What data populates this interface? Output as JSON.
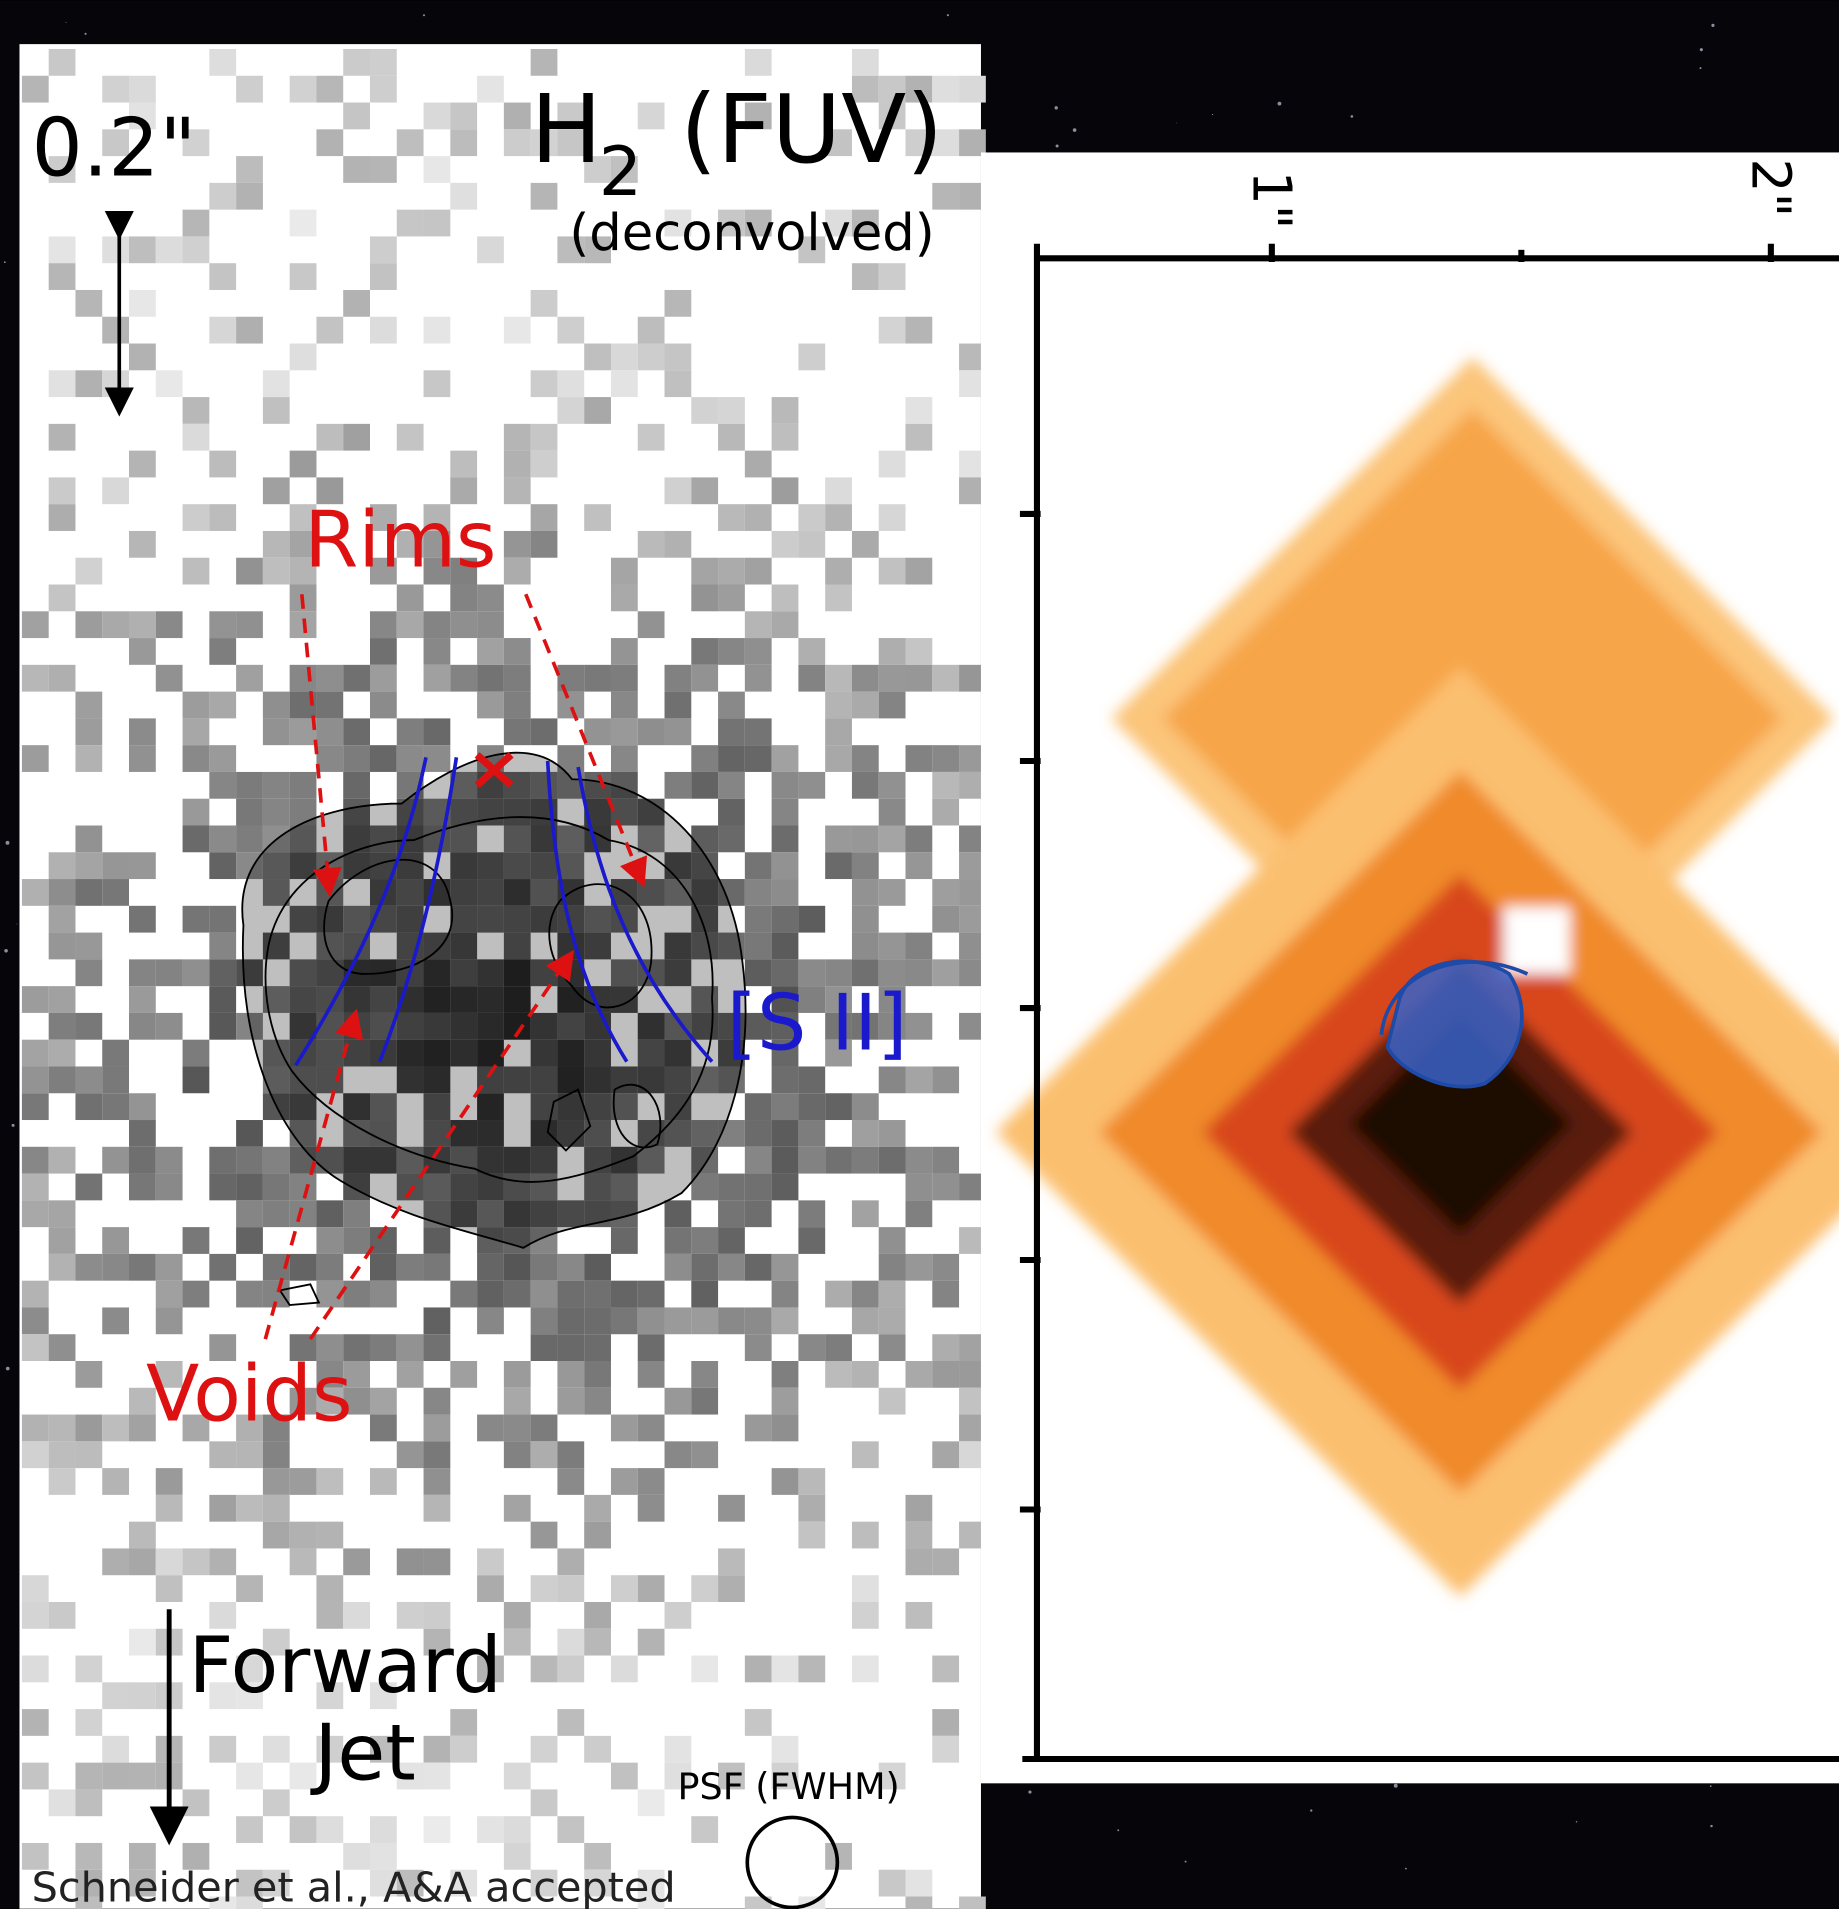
{
  "left_panel": {
    "scale_label": "0.2\"",
    "title": {
      "main": "H",
      "subscript": "2",
      "suffix": "(FUV)"
    },
    "subtitle": "(deconvolved)",
    "labels": {
      "rims": "Rims",
      "sii": "[S II]",
      "voids": "Voids"
    },
    "direction": {
      "line1": "Forward",
      "line2": "Jet"
    },
    "psf_label": "PSF (FWHM)",
    "credit": "Schneider et al., A&A accepted"
  },
  "right_panel": {
    "tick_labels": [
      "1\"",
      "2\""
    ]
  }
}
